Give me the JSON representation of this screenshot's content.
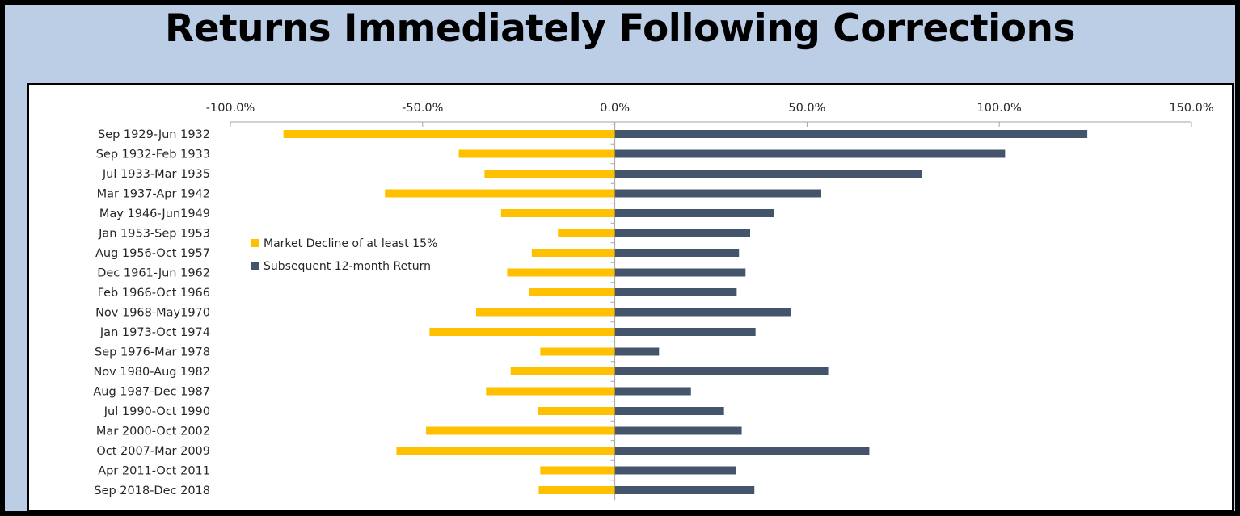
{
  "title": "Returns Immediately Following Corrections",
  "colors": {
    "decline": "#ffc000",
    "return": "#44546a",
    "background": "#bccde6",
    "axis": "#a6a6a6"
  },
  "chart_data": {
    "type": "bar",
    "orientation": "horizontal",
    "xlim": [
      -100,
      150
    ],
    "xticks": [
      -100,
      -50,
      0,
      50,
      100,
      150
    ],
    "xtick_labels": [
      "-100.0%",
      "-50.0%",
      "0.0%",
      "50.0%",
      "100.0%",
      "150.0%"
    ],
    "grid": false,
    "legend_position": "left-middle",
    "categories": [
      "Sep 1929-Jun 1932",
      "Sep 1932-Feb 1933",
      "Jul 1933-Mar 1935",
      "Mar 1937-Apr 1942",
      "May 1946-Jun1949",
      "Jan 1953-Sep 1953",
      "Aug 1956-Oct 1957",
      "Dec 1961-Jun 1962",
      "Feb 1966-Oct 1966",
      "Nov 1968-May1970",
      "Jan 1973-Oct 1974",
      "Sep 1976-Mar 1978",
      "Nov 1980-Aug 1982",
      "Aug 1987-Dec 1987",
      "Jul 1990-Oct 1990",
      "Mar 2000-Oct 2002",
      "Oct 2007-Mar 2009",
      "Apr 2011-Oct 2011",
      "Sep 2018-Dec 2018"
    ],
    "series": [
      {
        "name": "Market Decline of at least 15%",
        "color": "#ffc000",
        "values": [
          -86.2,
          -40.6,
          -33.9,
          -59.8,
          -29.6,
          -14.8,
          -21.6,
          -28.0,
          -22.2,
          -36.1,
          -48.2,
          -19.4,
          -27.1,
          -33.5,
          -19.9,
          -49.1,
          -56.8,
          -19.4,
          -19.8
        ]
      },
      {
        "name": "Subsequent 12-month Return",
        "color": "#44546a",
        "values": [
          122.9,
          101.5,
          79.8,
          53.7,
          41.4,
          35.2,
          32.3,
          34.0,
          31.7,
          45.7,
          36.6,
          11.5,
          55.5,
          19.8,
          28.4,
          33.0,
          66.2,
          31.5,
          36.3
        ]
      }
    ]
  }
}
